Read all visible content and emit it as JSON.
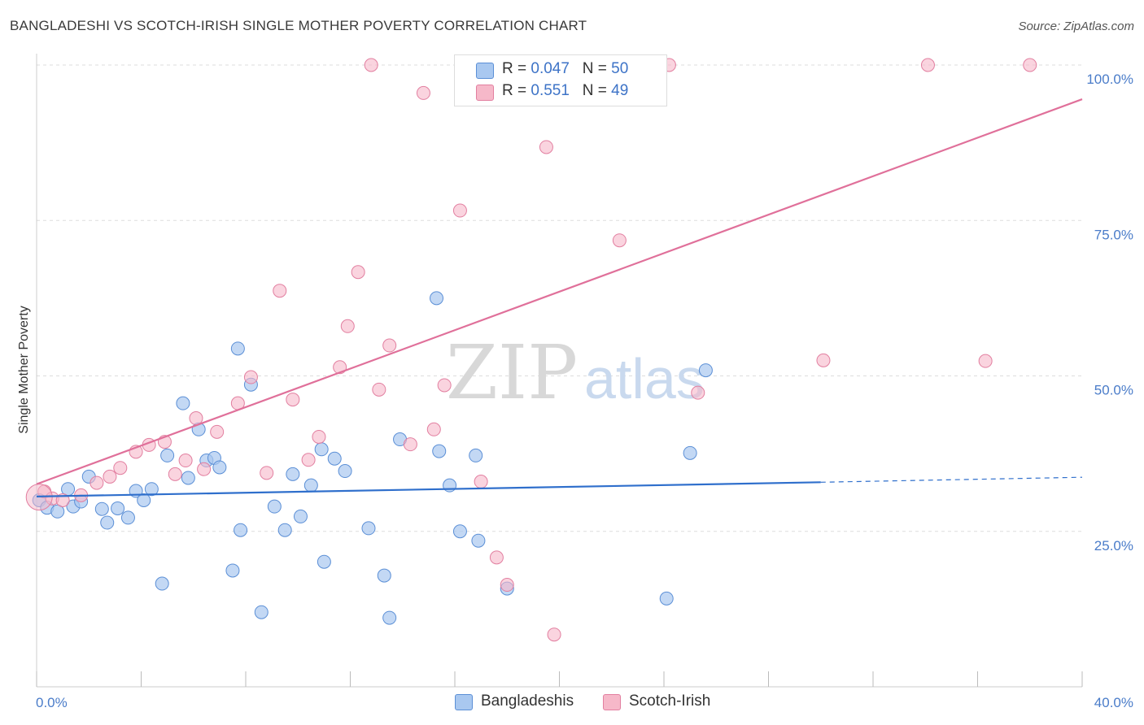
{
  "header": {
    "title": "BANGLADESHI VS SCOTCH-IRISH SINGLE MOTHER POVERTY CORRELATION CHART",
    "source": "Source: ZipAtlas.com"
  },
  "watermark": {
    "zip": "ZIP",
    "atlas": "atlas"
  },
  "legend": {
    "rows": [
      {
        "r_label": "R = ",
        "r_value": "0.047",
        "n_label": "N = ",
        "n_value": "50",
        "color": "#a9c8f0"
      },
      {
        "r_label": "R = ",
        "r_value": " 0.551",
        "n_label": "N = ",
        "n_value": "49",
        "color": "#f6b8c9"
      }
    ]
  },
  "bottom_legend": [
    {
      "label": "Bangladeshis",
      "color": "#a9c8f0"
    },
    {
      "label": "Scotch-Irish",
      "color": "#f6b8c9"
    }
  ],
  "colors": {
    "blue_fill": "#a9c8f0",
    "blue_stroke": "#5b8fd6",
    "blue_line": "#2f6fcc",
    "pink_fill": "#f6b8c9",
    "pink_stroke": "#e27fa0",
    "pink_line": "#e0709a",
    "grid": "#dddddd",
    "tick_text": "#4a7cc9"
  },
  "chart_data": {
    "type": "scatter",
    "title": "BANGLADESHI VS SCOTCH-IRISH SINGLE MOTHER POVERTY CORRELATION CHART",
    "xlabel": "",
    "ylabel": "Single Mother Poverty",
    "xlim": [
      0,
      40
    ],
    "ylim": [
      0,
      102
    ],
    "x_tick_labels": [
      "0.0%",
      "40.0%"
    ],
    "y_ticks": [
      25,
      50,
      75,
      100
    ],
    "y_tick_labels": [
      "25.0%",
      "50.0%",
      "75.0%",
      "100.0%"
    ],
    "grid": "horizontal dashed",
    "legend_position": "top-center",
    "series": [
      {
        "name": "Bangladeshis",
        "r": 0.047,
        "n": 50,
        "trend": {
          "x": [
            0,
            30
          ],
          "y": [
            30.6,
            32.9
          ],
          "dashed_extension_to_x": 40,
          "dashed_extension_y": 33.7
        },
        "points": [
          [
            0.1,
            30.0
          ],
          [
            0.4,
            28.8
          ],
          [
            0.8,
            28.2
          ],
          [
            1.2,
            31.8
          ],
          [
            1.4,
            29.0
          ],
          [
            1.7,
            29.8
          ],
          [
            2.0,
            33.8
          ],
          [
            2.5,
            28.6
          ],
          [
            2.7,
            26.4
          ],
          [
            3.1,
            28.7
          ],
          [
            3.5,
            27.2
          ],
          [
            3.8,
            31.5
          ],
          [
            4.1,
            30.0
          ],
          [
            4.4,
            31.8
          ],
          [
            4.8,
            16.6
          ],
          [
            5.0,
            37.2
          ],
          [
            5.6,
            45.6
          ],
          [
            5.8,
            33.6
          ],
          [
            6.2,
            41.4
          ],
          [
            6.5,
            36.4
          ],
          [
            6.8,
            36.8
          ],
          [
            7.0,
            35.3
          ],
          [
            7.5,
            18.7
          ],
          [
            7.7,
            54.4
          ],
          [
            7.8,
            25.2
          ],
          [
            8.2,
            48.6
          ],
          [
            8.6,
            12.0
          ],
          [
            9.1,
            29.0
          ],
          [
            9.5,
            25.2
          ],
          [
            9.8,
            34.2
          ],
          [
            10.1,
            27.4
          ],
          [
            10.5,
            32.4
          ],
          [
            10.9,
            38.2
          ],
          [
            11.0,
            20.1
          ],
          [
            11.4,
            36.7
          ],
          [
            11.8,
            34.7
          ],
          [
            12.7,
            25.5
          ],
          [
            13.3,
            17.9
          ],
          [
            13.5,
            11.1
          ],
          [
            13.9,
            39.8
          ],
          [
            15.3,
            62.5
          ],
          [
            15.4,
            37.9
          ],
          [
            15.8,
            32.4
          ],
          [
            16.2,
            25.0
          ],
          [
            16.8,
            37.2
          ],
          [
            16.9,
            23.5
          ],
          [
            18.0,
            15.8
          ],
          [
            24.1,
            14.2
          ],
          [
            25.0,
            37.6
          ],
          [
            25.6,
            50.9
          ]
        ]
      },
      {
        "name": "Scotch-Irish",
        "r": 0.551,
        "n": 49,
        "trend": {
          "x": [
            0,
            40
          ],
          "y": [
            32.6,
            94.5
          ]
        },
        "points": [
          [
            0.3,
            31.4
          ],
          [
            0.6,
            30.3
          ],
          [
            1.0,
            30.0
          ],
          [
            1.7,
            30.8
          ],
          [
            2.3,
            32.8
          ],
          [
            2.8,
            33.8
          ],
          [
            3.2,
            35.2
          ],
          [
            3.8,
            37.8
          ],
          [
            4.3,
            38.9
          ],
          [
            4.9,
            39.4
          ],
          [
            5.3,
            34.2
          ],
          [
            5.7,
            36.4
          ],
          [
            6.1,
            43.2
          ],
          [
            6.4,
            35.0
          ],
          [
            6.9,
            41.0
          ],
          [
            7.7,
            45.6
          ],
          [
            8.2,
            49.8
          ],
          [
            8.8,
            34.4
          ],
          [
            9.3,
            63.7
          ],
          [
            9.8,
            46.2
          ],
          [
            10.4,
            36.5
          ],
          [
            10.8,
            40.2
          ],
          [
            11.6,
            51.4
          ],
          [
            11.9,
            58.0
          ],
          [
            12.3,
            66.7
          ],
          [
            12.8,
            100.0
          ],
          [
            13.1,
            47.8
          ],
          [
            13.5,
            54.9
          ],
          [
            14.3,
            39.0
          ],
          [
            14.8,
            95.5
          ],
          [
            15.2,
            41.4
          ],
          [
            15.6,
            48.5
          ],
          [
            16.2,
            76.6
          ],
          [
            17.0,
            33.0
          ],
          [
            17.6,
            20.8
          ],
          [
            18.0,
            16.4
          ],
          [
            18.7,
            100.0
          ],
          [
            19.5,
            86.8
          ],
          [
            19.8,
            8.4
          ],
          [
            20.9,
            100.0
          ],
          [
            21.2,
            100.0
          ],
          [
            22.3,
            71.8
          ],
          [
            24.2,
            100.0
          ],
          [
            25.3,
            47.3
          ],
          [
            30.1,
            52.5
          ],
          [
            34.1,
            100.0
          ],
          [
            36.3,
            52.4
          ],
          [
            38.0,
            100.0
          ],
          [
            0.1,
            30.5
          ]
        ]
      }
    ]
  }
}
